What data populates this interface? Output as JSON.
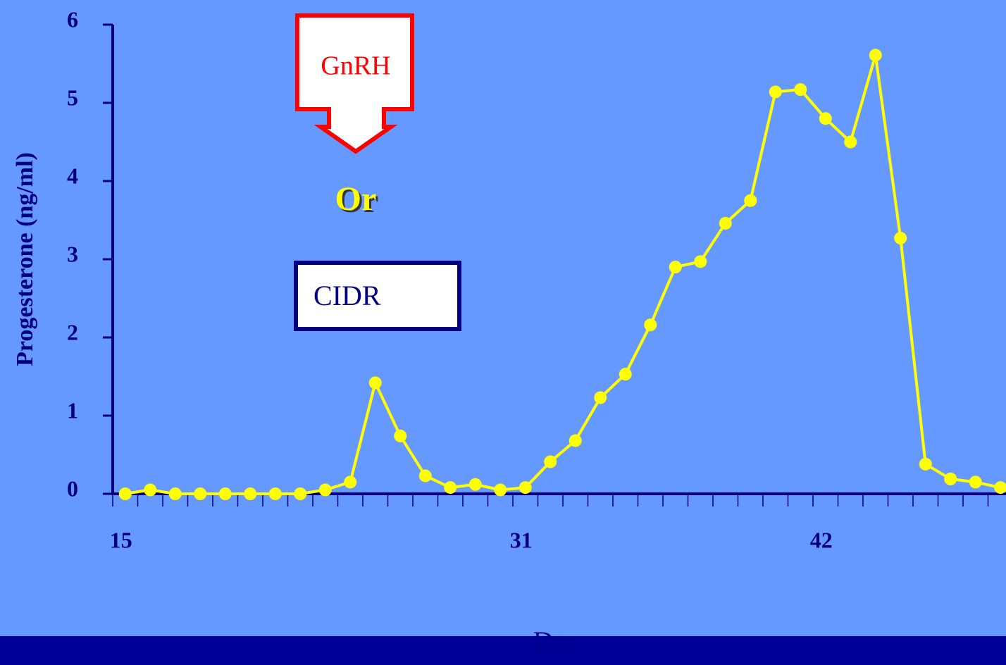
{
  "chart_data": {
    "type": "line",
    "y_label": "Progesterone (ng/ml)",
    "x_label": "Day",
    "annotations": [
      "GnRH",
      "Or",
      "CIDR"
    ],
    "categories": [
      "15",
      null,
      null,
      null,
      null,
      null,
      null,
      null,
      null,
      null,
      null,
      null,
      null,
      null,
      null,
      null,
      "31",
      null,
      null,
      null,
      null,
      null,
      null,
      null,
      null,
      null,
      null,
      null,
      "42",
      null,
      null,
      null,
      null,
      null,
      null,
      null
    ],
    "series": [
      {
        "name": "Progesterone",
        "color": "#ffff00",
        "values": [
          0,
          0.05,
          0,
          0,
          0,
          0,
          0,
          0,
          0.05,
          0.15,
          1.42,
          0.74,
          0.23,
          0.08,
          0.12,
          0.05,
          0.08,
          0.41,
          0.68,
          1.23,
          1.53,
          2.16,
          2.9,
          2.97,
          3.46,
          3.75,
          5.14,
          5.17,
          4.8,
          4.5,
          5.61,
          3.27,
          0.38,
          0.19,
          0.15,
          0.08
        ]
      }
    ],
    "ylim": [
      0,
      6
    ],
    "yticks": [
      0,
      1,
      2,
      3,
      4,
      5,
      6
    ]
  }
}
